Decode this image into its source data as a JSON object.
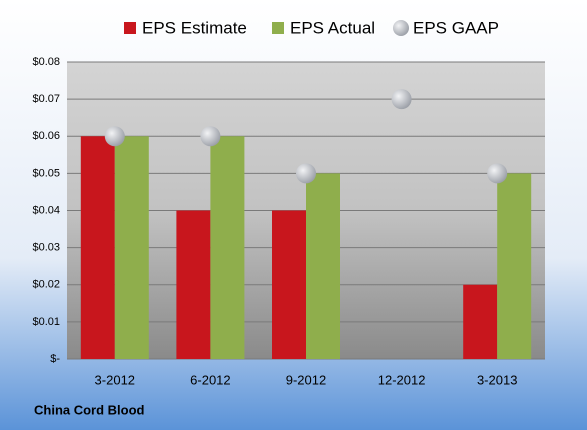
{
  "chart_data": {
    "type": "bar",
    "categories": [
      "3-2012",
      "6-2012",
      "9-2012",
      "12-2012",
      "3-2013"
    ],
    "series": [
      {
        "name": "EPS Estimate",
        "color": "#c8161d",
        "mark": "bar",
        "values": [
          0.06,
          0.04,
          0.04,
          null,
          0.02
        ]
      },
      {
        "name": "EPS Actual",
        "color": "#8fae4c",
        "mark": "bar",
        "values": [
          0.06,
          0.06,
          0.05,
          null,
          0.05
        ]
      },
      {
        "name": "EPS GAAP",
        "color": "#b8bcc4",
        "mark": "circle",
        "values": [
          0.06,
          0.06,
          0.05,
          0.07,
          0.05
        ]
      }
    ],
    "ylim": [
      0,
      0.08
    ],
    "yticks": [
      {
        "value": 0,
        "label": "$-"
      },
      {
        "value": 0.01,
        "label": "$0.01"
      },
      {
        "value": 0.02,
        "label": "$0.02"
      },
      {
        "value": 0.03,
        "label": "$0.03"
      },
      {
        "value": 0.04,
        "label": "$0.04"
      },
      {
        "value": 0.05,
        "label": "$0.05"
      },
      {
        "value": 0.06,
        "label": "$0.06"
      },
      {
        "value": 0.07,
        "label": "$0.07"
      },
      {
        "value": 0.08,
        "label": "$0.08"
      }
    ],
    "grid": true,
    "legend": "top",
    "footer": "China Cord Blood"
  }
}
